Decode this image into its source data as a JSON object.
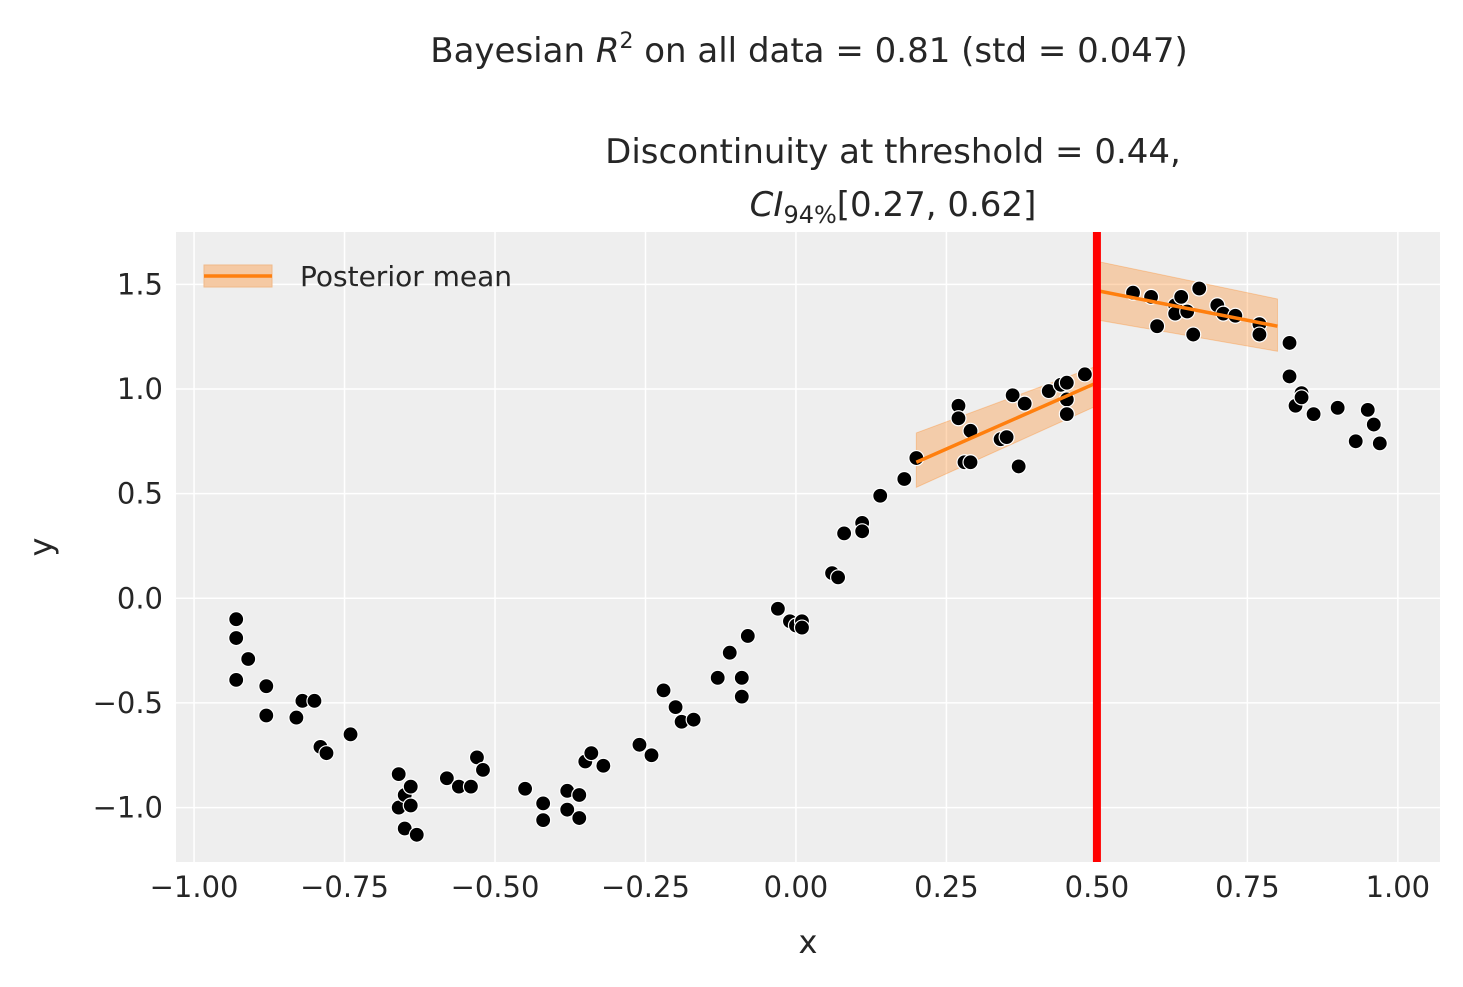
{
  "chart_data": {
    "type": "scatter",
    "title_line1": {
      "prefix": "Bayesian ",
      "var": "R",
      "sup": "2",
      "rest": " on all data = 0.81 (std = 0.047)"
    },
    "title_line2": "Discontinuity at threshold = 0.44,",
    "title_line3": {
      "var": "CI",
      "sub": "94%",
      "rest": "[0.27, 0.62]"
    },
    "xlabel": "x",
    "ylabel": "y",
    "xlim": [
      -1.03,
      1.07
    ],
    "ylim": [
      -1.26,
      1.75
    ],
    "xticks": [
      -1.0,
      -0.75,
      -0.5,
      -0.25,
      0.0,
      0.25,
      0.5,
      0.75,
      1.0
    ],
    "xtick_labels": [
      "−1.00",
      "−0.75",
      "−0.50",
      "−0.25",
      "0.00",
      "0.25",
      "0.50",
      "0.75",
      "1.00"
    ],
    "yticks": [
      -1.0,
      -0.5,
      0.0,
      0.5,
      1.0,
      1.5
    ],
    "ytick_labels": [
      "−1.0",
      "−0.5",
      "0.0",
      "0.5",
      "1.0",
      "1.5"
    ],
    "grid": true,
    "legend": {
      "placement": "top-left",
      "entries": [
        "Posterior mean"
      ]
    },
    "colors": {
      "points": "#000000",
      "fit": "#ff7f0e",
      "band": "#f5c9a3",
      "threshold": "#ff0000",
      "background": "#eeeeee"
    },
    "threshold": 0.5,
    "points": [
      [
        -0.93,
        -0.1
      ],
      [
        -0.93,
        -0.19
      ],
      [
        -0.91,
        -0.29
      ],
      [
        -0.93,
        -0.39
      ],
      [
        -0.88,
        -0.42
      ],
      [
        -0.88,
        -0.56
      ],
      [
        -0.83,
        -0.57
      ],
      [
        -0.82,
        -0.49
      ],
      [
        -0.8,
        -0.49
      ],
      [
        -0.79,
        -0.71
      ],
      [
        -0.78,
        -0.74
      ],
      [
        -0.74,
        -0.65
      ],
      [
        -0.66,
        -0.84
      ],
      [
        -0.66,
        -1.0
      ],
      [
        -0.65,
        -0.94
      ],
      [
        -0.64,
        -0.9
      ],
      [
        -0.64,
        -0.99
      ],
      [
        -0.65,
        -1.1
      ],
      [
        -0.63,
        -1.13
      ],
      [
        -0.58,
        -0.86
      ],
      [
        -0.56,
        -0.9
      ],
      [
        -0.54,
        -0.9
      ],
      [
        -0.53,
        -0.76
      ],
      [
        -0.52,
        -0.82
      ],
      [
        -0.45,
        -0.91
      ],
      [
        -0.42,
        -0.98
      ],
      [
        -0.42,
        -1.06
      ],
      [
        -0.38,
        -0.92
      ],
      [
        -0.38,
        -1.01
      ],
      [
        -0.36,
        -0.94
      ],
      [
        -0.36,
        -1.05
      ],
      [
        -0.35,
        -0.78
      ],
      [
        -0.34,
        -0.74
      ],
      [
        -0.32,
        -0.8
      ],
      [
        -0.26,
        -0.7
      ],
      [
        -0.24,
        -0.75
      ],
      [
        -0.22,
        -0.44
      ],
      [
        -0.2,
        -0.52
      ],
      [
        -0.19,
        -0.59
      ],
      [
        -0.17,
        -0.58
      ],
      [
        -0.13,
        -0.38
      ],
      [
        -0.11,
        -0.26
      ],
      [
        -0.09,
        -0.38
      ],
      [
        -0.09,
        -0.47
      ],
      [
        -0.08,
        -0.18
      ],
      [
        -0.03,
        -0.05
      ],
      [
        -0.01,
        -0.11
      ],
      [
        0.0,
        -0.13
      ],
      [
        0.01,
        -0.11
      ],
      [
        0.01,
        -0.14
      ],
      [
        0.06,
        0.12
      ],
      [
        0.07,
        0.1
      ],
      [
        0.08,
        0.31
      ],
      [
        0.11,
        0.36
      ],
      [
        0.11,
        0.32
      ],
      [
        0.14,
        0.49
      ],
      [
        0.18,
        0.57
      ],
      [
        0.2,
        0.67
      ],
      [
        0.27,
        0.92
      ],
      [
        0.27,
        0.86
      ],
      [
        0.28,
        0.65
      ],
      [
        0.29,
        0.65
      ],
      [
        0.29,
        0.8
      ],
      [
        0.34,
        0.76
      ],
      [
        0.35,
        0.77
      ],
      [
        0.36,
        0.97
      ],
      [
        0.37,
        0.63
      ],
      [
        0.38,
        0.93
      ],
      [
        0.42,
        0.99
      ],
      [
        0.44,
        1.02
      ],
      [
        0.45,
        1.03
      ],
      [
        0.45,
        0.95
      ],
      [
        0.45,
        0.88
      ],
      [
        0.48,
        1.07
      ],
      [
        0.56,
        1.46
      ],
      [
        0.59,
        1.44
      ],
      [
        0.6,
        1.3
      ],
      [
        0.63,
        1.4
      ],
      [
        0.63,
        1.36
      ],
      [
        0.64,
        1.44
      ],
      [
        0.65,
        1.37
      ],
      [
        0.66,
        1.26
      ],
      [
        0.67,
        1.48
      ],
      [
        0.7,
        1.4
      ],
      [
        0.71,
        1.36
      ],
      [
        0.73,
        1.35
      ],
      [
        0.77,
        1.31
      ],
      [
        0.77,
        1.26
      ],
      [
        0.82,
        1.22
      ],
      [
        0.82,
        1.06
      ],
      [
        0.83,
        0.92
      ],
      [
        0.84,
        0.98
      ],
      [
        0.84,
        0.96
      ],
      [
        0.86,
        0.88
      ],
      [
        0.9,
        0.91
      ],
      [
        0.93,
        0.75
      ],
      [
        0.96,
        0.83
      ],
      [
        0.97,
        0.74
      ],
      [
        0.95,
        0.9
      ]
    ],
    "fits": [
      {
        "x": [
          0.2,
          0.5
        ],
        "mean": [
          0.65,
          1.03
        ],
        "upper": [
          0.79,
          1.11
        ],
        "lower": [
          0.53,
          0.92
        ]
      },
      {
        "x": [
          0.5,
          0.8
        ],
        "mean": [
          1.47,
          1.3
        ],
        "upper": [
          1.61,
          1.43
        ],
        "lower": [
          1.33,
          1.18
        ]
      }
    ]
  }
}
